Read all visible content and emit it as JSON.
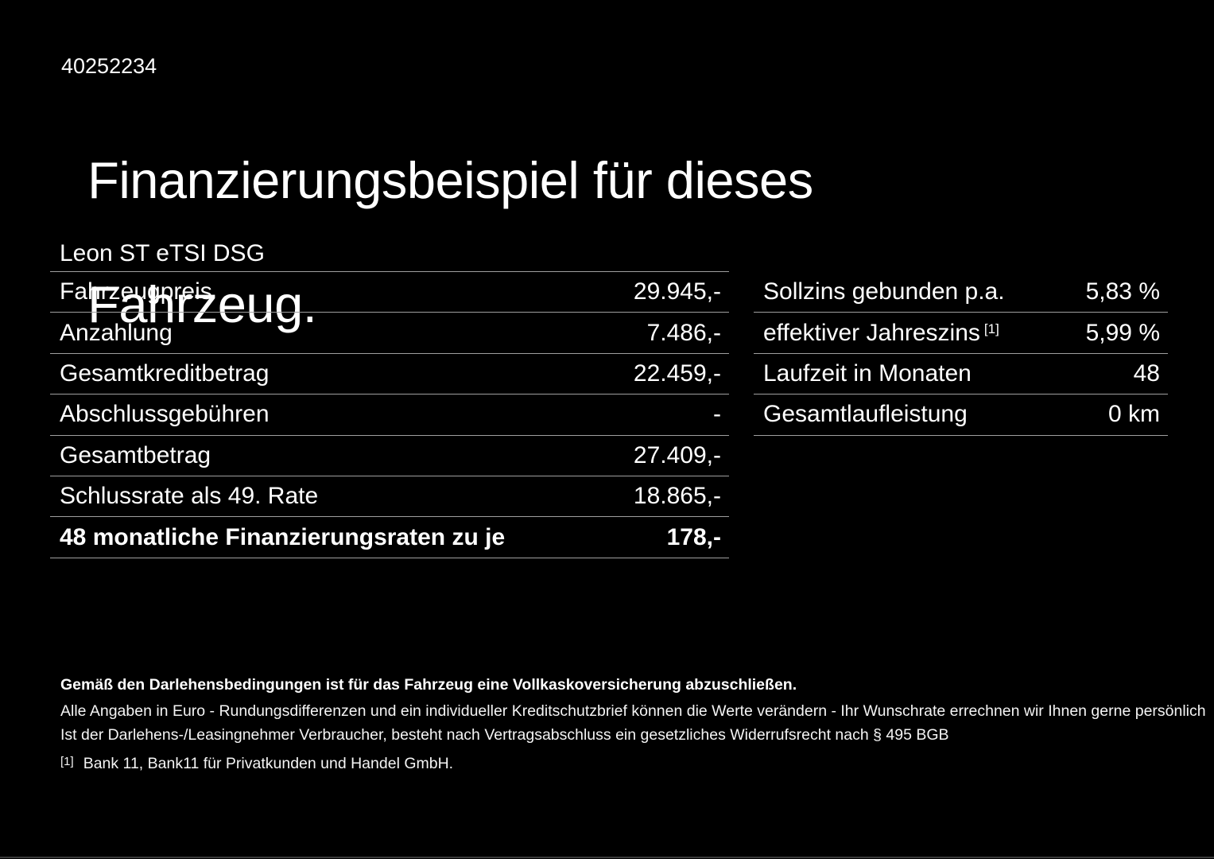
{
  "page": {
    "doc_id": "40252234",
    "title_line1": "Finanzierungsbeispiel für dieses",
    "title_line2": "Fahrzeug.",
    "vehicle_model": "Leon ST eTSI DSG"
  },
  "finance_table": {
    "rows": [
      {
        "label": "Fahrzeugpreis",
        "value": "29.945,-"
      },
      {
        "label": "Anzahlung",
        "value": "7.486,-"
      },
      {
        "label": "Gesamtkreditbetrag",
        "value": "22.459,-"
      },
      {
        "label": "Abschlussgebühren",
        "value": "-"
      },
      {
        "label": "Gesamtbetrag",
        "value": "27.409,-"
      },
      {
        "label": "Schlussrate als 49. Rate",
        "value": "18.865,-"
      },
      {
        "label": "48 monatliche Finanzierungsraten zu je",
        "value": "178,-"
      }
    ]
  },
  "conditions_table": {
    "rows": [
      {
        "label": "Sollzins gebunden p.a.",
        "footnote": "",
        "value": "5,83 %"
      },
      {
        "label": "effektiver Jahreszins",
        "footnote": "[1]",
        "value": "5,99 %"
      },
      {
        "label": "Laufzeit in Monaten",
        "footnote": "",
        "value": "48"
      },
      {
        "label": "Gesamtlaufleistung",
        "footnote": "",
        "value": "0 km"
      }
    ]
  },
  "footer": {
    "insurance_note": "Gemäß den Darlehensbedingungen ist für das Fahrzeug eine Vollkaskoversicherung abzuschließen.",
    "disclaimer_line1": "Alle Angaben in Euro - Rundungsdifferenzen und ein individueller Kreditschutzbrief können die Werte verändern - Ihr Wunschrate errechnen wir Ihnen gerne persönlich",
    "disclaimer_line2": "Ist der Darlehens-/Leasingnehmer Verbraucher, besteht nach Vertragsabschluss ein gesetzliches Widerrufsrecht nach § 495 BGB",
    "footnote_marker": "[1]",
    "footnote_text": "Bank 11, Bank11 für Privatkunden und Handel GmbH."
  },
  "colors": {
    "background": "#000000",
    "text": "#ffffff",
    "divider": "#9f9f9f"
  }
}
